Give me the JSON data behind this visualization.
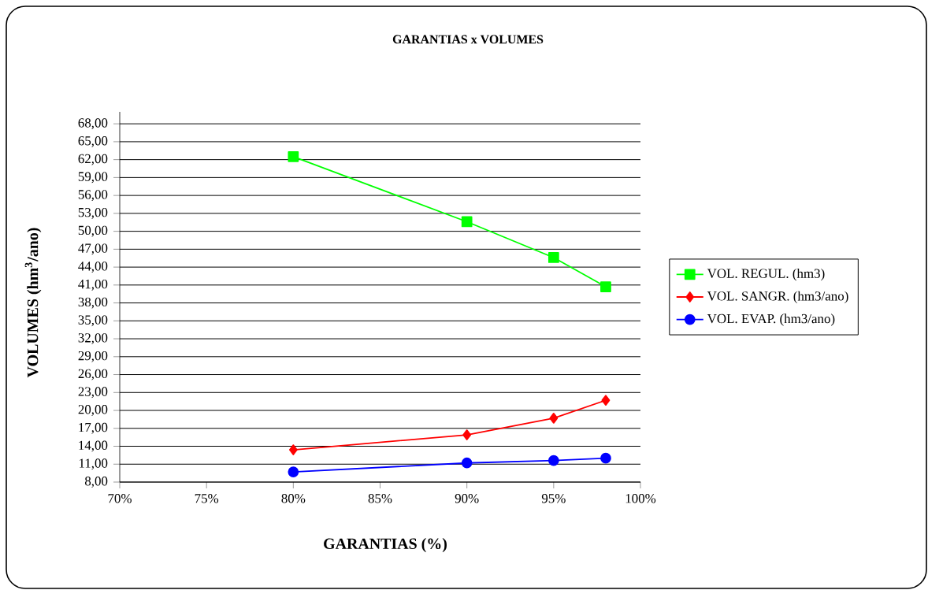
{
  "chart_data": {
    "type": "line",
    "title": "GARANTIAS x VOLUMES",
    "xlabel": "GARANTIAS (%)",
    "ylabel": "VOLUMES (hm$^{3}$/ano)",
    "x": [
      80,
      90,
      95,
      98
    ],
    "series": [
      {
        "name": "VOL. REGUL. (hm3)",
        "color": "#00ff00",
        "marker": "square",
        "values": [
          62.5,
          51.6,
          45.6,
          40.7
        ]
      },
      {
        "name": "VOL. SANGR. (hm3/ano)",
        "color": "#ff0000",
        "marker": "diamond",
        "values": [
          13.4,
          15.9,
          18.7,
          21.7
        ]
      },
      {
        "name": "VOL. EVAP. (hm3/ano)",
        "color": "#0000ff",
        "marker": "circle",
        "values": [
          9.7,
          11.2,
          11.6,
          12.0
        ]
      }
    ],
    "xlim": [
      70,
      100
    ],
    "xticks": [
      {
        "value": 70,
        "label": "70%"
      },
      {
        "value": 75,
        "label": "75%"
      },
      {
        "value": 80,
        "label": "80%"
      },
      {
        "value": 85,
        "label": "85%"
      },
      {
        "value": 90,
        "label": "90%"
      },
      {
        "value": 95,
        "label": "95%"
      },
      {
        "value": 100,
        "label": "100%"
      }
    ],
    "ylim": [
      8,
      70
    ],
    "yticks": [
      {
        "value": 8,
        "label": "8,00"
      },
      {
        "value": 11,
        "label": "11,00"
      },
      {
        "value": 14,
        "label": "14,00"
      },
      {
        "value": 17,
        "label": "17,00"
      },
      {
        "value": 20,
        "label": "20,00"
      },
      {
        "value": 23,
        "label": "23,00"
      },
      {
        "value": 26,
        "label": "26,00"
      },
      {
        "value": 29,
        "label": "29,00"
      },
      {
        "value": 32,
        "label": "32,00"
      },
      {
        "value": 35,
        "label": "35,00"
      },
      {
        "value": 38,
        "label": "38,00"
      },
      {
        "value": 41,
        "label": "41,00"
      },
      {
        "value": 44,
        "label": "44,00"
      },
      {
        "value": 47,
        "label": "47,00"
      },
      {
        "value": 50,
        "label": "50,00"
      },
      {
        "value": 53,
        "label": "53,00"
      },
      {
        "value": 56,
        "label": "56,00"
      },
      {
        "value": 59,
        "label": "59,00"
      },
      {
        "value": 62,
        "label": "62,00"
      },
      {
        "value": 65,
        "label": "65,00"
      },
      {
        "value": 68,
        "label": "68,00"
      }
    ],
    "grid": "y",
    "legend": "right"
  }
}
